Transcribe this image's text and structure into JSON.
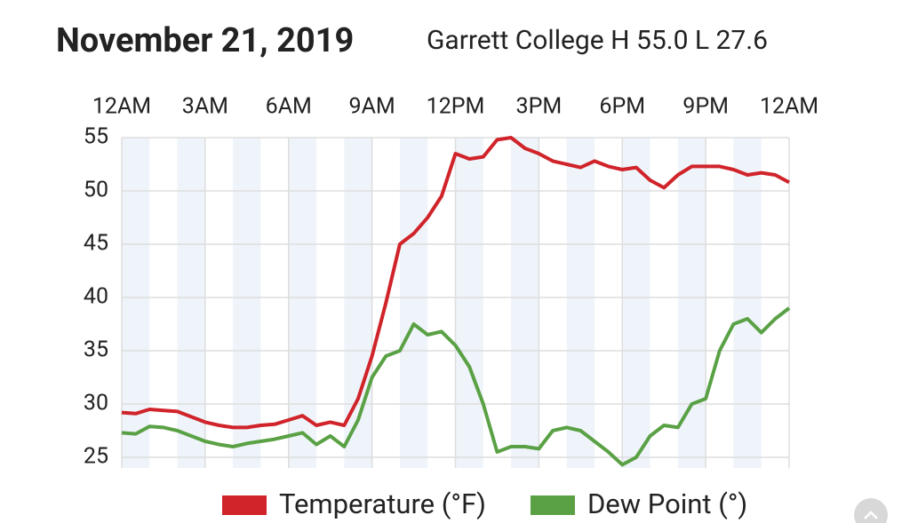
{
  "chart_data": {
    "type": "line",
    "title": "November 21, 2019",
    "subtitle": "Garrett College H 55.0 L 27.6",
    "x": [
      0,
      0.5,
      1,
      1.5,
      2,
      2.5,
      3,
      3.5,
      4,
      4.5,
      5,
      5.5,
      6,
      6.5,
      7,
      7.5,
      8,
      8.5,
      9,
      9.5,
      10,
      10.5,
      11,
      11.5,
      12,
      12.5,
      13,
      13.5,
      14,
      14.5,
      15,
      15.5,
      16,
      16.5,
      17,
      17.5,
      18,
      18.5,
      19,
      19.5,
      20,
      20.5,
      21,
      21.5,
      22,
      22.5,
      23,
      23.5,
      24
    ],
    "series": [
      {
        "name": "Temperature (°F)",
        "color": "#d0232a",
        "values": [
          29.2,
          29.1,
          29.5,
          29.4,
          29.3,
          28.8,
          28.3,
          28.0,
          27.8,
          27.8,
          28.0,
          28.1,
          28.5,
          28.9,
          28.0,
          28.3,
          28.0,
          30.5,
          34.5,
          39.5,
          45.0,
          46.0,
          47.5,
          49.5,
          53.5,
          53.0,
          53.2,
          54.8,
          55.0,
          54.0,
          53.5,
          52.8,
          52.5,
          52.2,
          52.8,
          52.3,
          52.0,
          52.2,
          51.0,
          50.3,
          51.5,
          52.3,
          52.3,
          52.3,
          52.0,
          51.5,
          51.7,
          51.5,
          50.8
        ]
      },
      {
        "name": "Dew Point (°)",
        "color": "#5aa145",
        "values": [
          27.3,
          27.2,
          27.9,
          27.8,
          27.5,
          27.0,
          26.5,
          26.2,
          26.0,
          26.3,
          26.5,
          26.7,
          27.0,
          27.3,
          26.2,
          27.0,
          26.0,
          28.5,
          32.5,
          34.5,
          35.0,
          37.5,
          36.5,
          36.8,
          35.5,
          33.5,
          30.0,
          25.5,
          26.0,
          26.0,
          25.8,
          27.5,
          27.8,
          27.5,
          26.5,
          25.5,
          24.3,
          25.0,
          27.0,
          28.0,
          27.8,
          30.0,
          30.5,
          35.0,
          37.5,
          38.0,
          36.7,
          38.0,
          39.0
        ]
      }
    ],
    "xlim": [
      0,
      24
    ],
    "xticks": [
      {
        "value": 0,
        "label": "12AM"
      },
      {
        "value": 3,
        "label": "3AM"
      },
      {
        "value": 6,
        "label": "6AM"
      },
      {
        "value": 9,
        "label": "9AM"
      },
      {
        "value": 12,
        "label": "12PM"
      },
      {
        "value": 15,
        "label": "3PM"
      },
      {
        "value": 18,
        "label": "6PM"
      },
      {
        "value": 21,
        "label": "9PM"
      },
      {
        "value": 24,
        "label": "12AM"
      }
    ],
    "ylim": [
      24,
      55
    ],
    "yticks": [
      25,
      30,
      35,
      40,
      45,
      50,
      55
    ],
    "grid": true
  }
}
